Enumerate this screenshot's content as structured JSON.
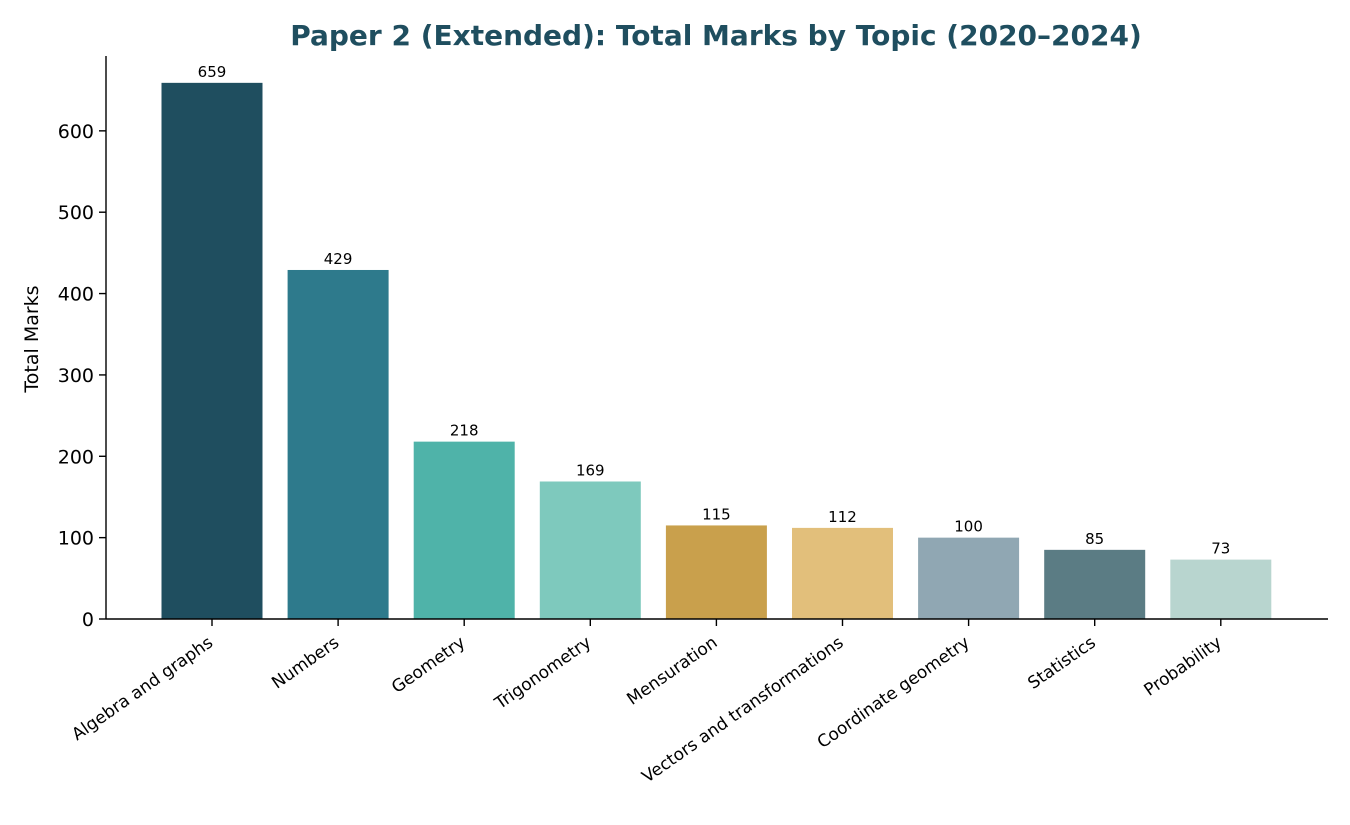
{
  "chart_data": {
    "type": "bar",
    "title": "Paper 2 (Extended): Total Marks by Topic (2020–2024)",
    "xlabel": "",
    "ylabel": "Total Marks",
    "categories": [
      "Algebra and graphs",
      "Numbers",
      "Geometry",
      "Trigonometry",
      "Mensuration",
      "Vectors and transformations",
      "Coordinate geometry",
      "Statistics",
      "Probability"
    ],
    "values": [
      659,
      429,
      218,
      169,
      115,
      112,
      100,
      85,
      73
    ],
    "colors": [
      "#1f4e5f",
      "#2e7a8c",
      "#4fb3a9",
      "#7ec9bd",
      "#c9a04c",
      "#e2bf7b",
      "#90a7b3",
      "#5b7c84",
      "#b8d5cf"
    ],
    "ylim": [
      0,
      692
    ],
    "yticks": [
      0,
      100,
      200,
      300,
      400,
      500,
      600
    ],
    "grid": false,
    "legend": "none",
    "xtick_rotation": -35,
    "data_labels": true
  }
}
